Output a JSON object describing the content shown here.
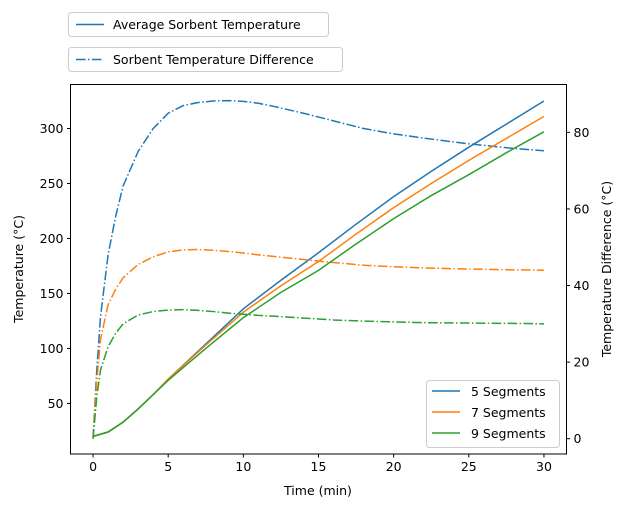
{
  "chart_data": {
    "type": "line",
    "xlabel": "Time (min)",
    "ylabel": "Temperature (°C)",
    "y2label": "Temperature Difference (°C)",
    "xlim": [
      -1.5,
      31.5
    ],
    "ylim": [
      4,
      340
    ],
    "y2lim": [
      -4,
      92.5
    ],
    "xticks": [
      0,
      5,
      10,
      15,
      20,
      25,
      30
    ],
    "yticks": [
      50,
      100,
      150,
      200,
      250,
      300
    ],
    "y2ticks": [
      0,
      20,
      40,
      60,
      80
    ],
    "grid": false,
    "style_legend": [
      {
        "label": "Average Sorbent Temperature",
        "style": "solid"
      },
      {
        "label": "Sorbent Temperature Difference",
        "style": "dashdot"
      }
    ],
    "series_legend_position": "lower-right",
    "avg_x": [
      0,
      1,
      2,
      3,
      4,
      5,
      7.5,
      10,
      12.5,
      15,
      17.5,
      20,
      22.5,
      25,
      27.5,
      30
    ],
    "diff_x": [
      0,
      0.25,
      0.5,
      1,
      1.5,
      2,
      3,
      4,
      5,
      6,
      7,
      8,
      9,
      10,
      11,
      12,
      14,
      16,
      18,
      20,
      22,
      25,
      28,
      30
    ],
    "series": [
      {
        "name": "5 Segments",
        "color": "#1f77b4",
        "avg": [
          20,
          24,
          33,
          45,
          58,
          72,
          104,
          136,
          162,
          187,
          213,
          238,
          261,
          283,
          304,
          325
        ],
        "diff": [
          0,
          18,
          32,
          48,
          58,
          66,
          75,
          81,
          85,
          87,
          87.8,
          88.2,
          88.3,
          88.1,
          87.6,
          86.8,
          85,
          83,
          81,
          79.6,
          78.5,
          77,
          75.8,
          75.2
        ]
      },
      {
        "name": "7 Segments",
        "color": "#ff7f0e",
        "avg": [
          20,
          24,
          33,
          45,
          58,
          72,
          103,
          133,
          157,
          179,
          204,
          228,
          250,
          271,
          291,
          311
        ],
        "diff": [
          0,
          15,
          26,
          35,
          39,
          42,
          45.5,
          47.5,
          48.8,
          49.3,
          49.4,
          49.2,
          48.9,
          48.5,
          48,
          47.6,
          46.8,
          46,
          45.3,
          44.9,
          44.6,
          44.3,
          44.1,
          44
        ]
      },
      {
        "name": "9 Segments",
        "color": "#2ca02c",
        "avg": [
          20,
          24,
          33,
          45,
          58,
          71,
          100,
          128,
          151,
          171,
          195,
          218,
          239,
          258,
          278,
          297
        ],
        "diff": [
          0,
          11,
          18,
          24,
          27.5,
          30,
          32.3,
          33.2,
          33.6,
          33.7,
          33.5,
          33.2,
          32.8,
          32.5,
          32.2,
          32,
          31.5,
          31,
          30.7,
          30.5,
          30.3,
          30.2,
          30.1,
          30
        ]
      }
    ]
  }
}
